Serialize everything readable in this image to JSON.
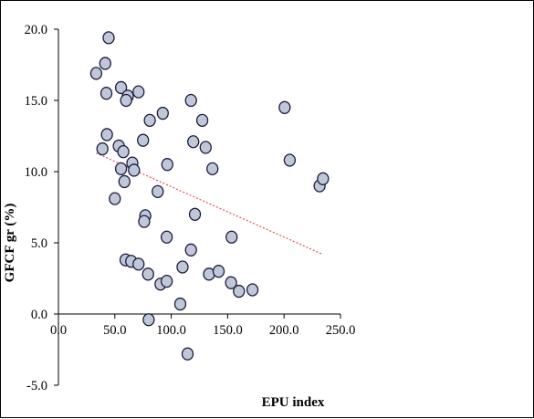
{
  "chart_data": {
    "type": "scatter",
    "title": "",
    "xlabel": "EPU index",
    "ylabel": "GFCF gr (%)",
    "xlim": [
      0,
      250
    ],
    "ylim": [
      -5,
      20
    ],
    "x_ticks": [
      0,
      50,
      100,
      150,
      200,
      250
    ],
    "x_tick_labels": [
      "0.0",
      "50.0",
      "100.0",
      "150.0",
      "200.0",
      "250.0"
    ],
    "y_ticks": [
      -5,
      0,
      5,
      10,
      15,
      20
    ],
    "y_tick_labels": [
      "-5.0",
      "0.0",
      "5.0",
      "10.0",
      "15.0",
      "20.0"
    ],
    "grid": false,
    "legend": "none",
    "marker_fill": "#c0c8d8",
    "marker_edge": "#1a1a40",
    "trendline": {
      "type": "linear",
      "color": "#e05050",
      "style": "dotted",
      "x": [
        33.5,
        234
      ],
      "y": [
        11.3,
        4.2
      ]
    },
    "series": [
      {
        "x": [
          33.5,
          41.5,
          44.5,
          42.5,
          55.5,
          61.5,
          60,
          71,
          92.5,
          81,
          117.5,
          127.5,
          43,
          39,
          53.5,
          57.5,
          55.5,
          65.5,
          67,
          75,
          58.5,
          50,
          77,
          76,
          88,
          96.5,
          119.5,
          130.5,
          136.5,
          96,
          117.5,
          121,
          200.5,
          205,
          231.5,
          234.5,
          59.5,
          64.5,
          71,
          79.5,
          90.5,
          96,
          110,
          108,
          114.5,
          133.5,
          142,
          153,
          153.5,
          160,
          172,
          80
        ],
        "y": [
          16.9,
          17.6,
          19.4,
          15.5,
          15.9,
          15.3,
          15.0,
          15.6,
          14.1,
          13.6,
          15.0,
          13.6,
          12.6,
          11.6,
          11.8,
          11.4,
          10.2,
          10.6,
          10.1,
          12.2,
          9.3,
          8.1,
          6.9,
          6.5,
          8.6,
          10.5,
          12.1,
          11.7,
          10.2,
          5.4,
          4.5,
          7.0,
          14.5,
          10.8,
          9.0,
          9.5,
          3.8,
          3.7,
          3.5,
          2.8,
          2.1,
          2.3,
          3.3,
          0.7,
          -2.8,
          2.8,
          3.0,
          2.2,
          5.4,
          1.6,
          1.7,
          -0.4
        ]
      }
    ]
  }
}
